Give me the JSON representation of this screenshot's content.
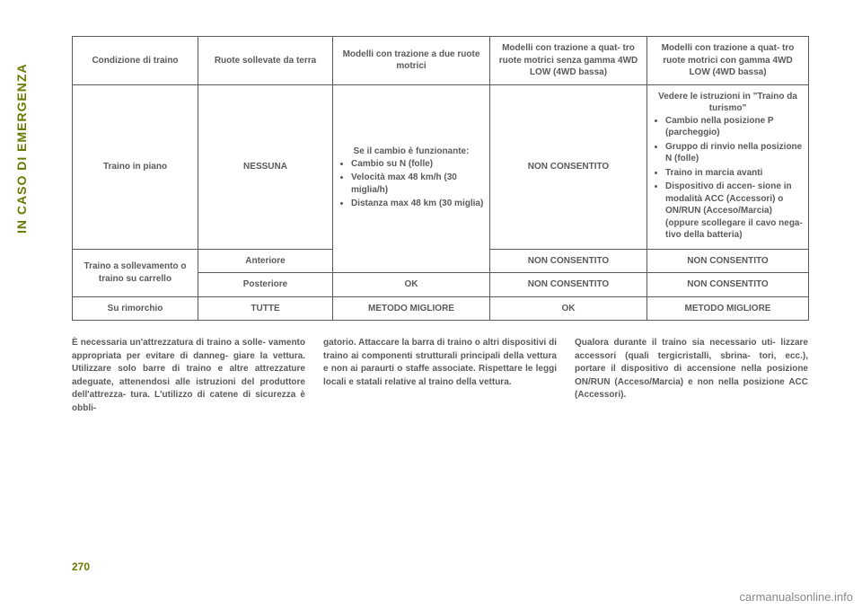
{
  "side_label": "IN CASO DI EMERGENZA",
  "page_number": "270",
  "footer_domain": "carmanualsonline.info",
  "table": {
    "headers": [
      "Condizione di traino",
      "Ruote sollevate da terra",
      "Modelli con trazione a due ruote motrici",
      "Modelli con trazione a quat- tro ruote motrici senza gamma 4WD LOW (4WD bassa)",
      "Modelli con trazione a quat- tro ruote motrici con gamma 4WD LOW (4WD bassa)"
    ],
    "r_piano_label": "Traino in piano",
    "r_piano_wheels": "NESSUNA",
    "r_piano_2wd_intro": "Se il cambio è funzionante:",
    "r_piano_2wd_b1": "Cambio su N (folle)",
    "r_piano_2wd_b2": "Velocità max 48 km/h (30 miglia/h)",
    "r_piano_2wd_b3": "Distanza max 48 km (30 miglia)",
    "r_piano_4nolow": "NON CONSENTITO",
    "r_piano_4low_intro": "Vedere le istruzioni in \"Traino da turismo\"",
    "r_piano_4low_b1": "Cambio nella posizione P (parcheggio)",
    "r_piano_4low_b2": "Gruppo di rinvio nella posizione N (folle)",
    "r_piano_4low_b3": "Traino in marcia avanti",
    "r_piano_4low_b4": "Dispositivo di accen- sione in modalità ACC (Accessori) o ON/RUN (Acceso/Marcia) (oppure scollegare il cavo nega- tivo della batteria)",
    "r_soll_label": "Traino a sollevamento o traino su carrello",
    "r_soll_front": "Anteriore",
    "r_soll_rear": "Posteriore",
    "ok": "OK",
    "non_consentito": "NON CONSENTITO",
    "r_rim_label": "Su rimorchio",
    "r_rim_wheels": "TUTTE",
    "metodo_migliore": "METODO MIGLIORE"
  },
  "body": {
    "col1": "È necessaria un'attrezzatura di traino a solle- vamento appropriata per evitare di danneg- giare la vettura. Utilizzare solo barre di traino e altre attrezzature adeguate, attenendosi alle istruzioni del produttore dell'attrezza- tura. L'utilizzo di catene di sicurezza è obbli-",
    "col2": "gatorio. Attaccare la barra di traino o altri dispositivi di traino ai componenti strutturali principali della vettura e non ai paraurti o staffe associate. Rispettare le leggi locali e statali relative al traino della vettura.",
    "col3": "Qualora durante il traino sia necessario uti- lizzare accessori (quali tergicristalli, sbrina- tori, ecc.), portare il dispositivo di accensione nella posizione ON/RUN (Acceso/Marcia) e non nella posizione ACC (Accessori)."
  },
  "colors": {
    "accent": "#6a7a00",
    "text": "#5a5a5a",
    "footer": "#888888"
  }
}
